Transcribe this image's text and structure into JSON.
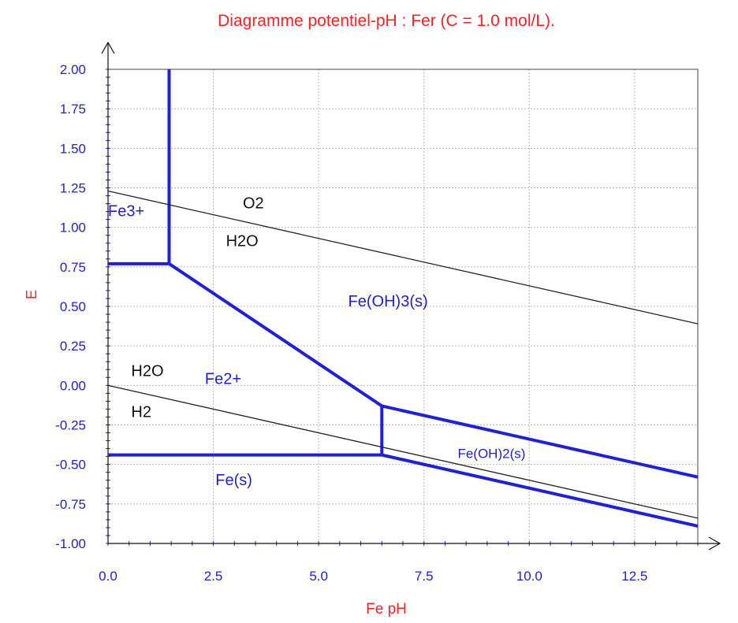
{
  "chart_data": {
    "type": "line",
    "title": "Diagramme potentiel-pH : Fer (C = 1.0 mol/L).",
    "ylabel": "E",
    "xlabel": "Fe pH",
    "xlim": [
      0,
      14
    ],
    "ylim": [
      -1.0,
      2.0
    ],
    "x_ticks": [
      "0.0",
      "2.5",
      "5.0",
      "7.5",
      "10.0",
      "12.5"
    ],
    "x_tick_values": [
      0,
      2.5,
      5,
      7.5,
      10,
      12.5
    ],
    "y_ticks": [
      "-1.00",
      "-0.75",
      "-0.50",
      "-0.25",
      "0.00",
      "0.25",
      "0.50",
      "0.75",
      "1.00",
      "1.25",
      "1.50",
      "1.75",
      "2.00"
    ],
    "y_tick_values": [
      -1.0,
      -0.75,
      -0.5,
      -0.25,
      0.0,
      0.25,
      0.5,
      0.75,
      1.0,
      1.25,
      1.5,
      1.75,
      2.0
    ],
    "grid": true,
    "series": [
      {
        "kind": "boundary",
        "color": "#1f1fe0",
        "points": [
          [
            0,
            0.77
          ],
          [
            1.45,
            0.77
          ]
        ]
      },
      {
        "kind": "boundary",
        "color": "#1f1fe0",
        "points": [
          [
            1.45,
            0.77
          ],
          [
            1.45,
            2.0
          ]
        ]
      },
      {
        "kind": "boundary",
        "color": "#1f1fe0",
        "points": [
          [
            1.45,
            0.77
          ],
          [
            6.5,
            -0.13
          ]
        ]
      },
      {
        "kind": "boundary",
        "color": "#1f1fe0",
        "points": [
          [
            6.5,
            -0.13
          ],
          [
            14,
            -0.58
          ]
        ]
      },
      {
        "kind": "boundary",
        "color": "#1f1fe0",
        "points": [
          [
            6.5,
            -0.13
          ],
          [
            6.5,
            -0.44
          ]
        ]
      },
      {
        "kind": "boundary",
        "color": "#1f1fe0",
        "points": [
          [
            0,
            -0.44
          ],
          [
            6.5,
            -0.44
          ]
        ]
      },
      {
        "kind": "boundary",
        "color": "#1f1fe0",
        "points": [
          [
            6.5,
            -0.44
          ],
          [
            14,
            -0.89
          ]
        ]
      },
      {
        "kind": "water",
        "color": "#222222",
        "points": [
          [
            0,
            1.23
          ],
          [
            14,
            0.39
          ]
        ]
      },
      {
        "kind": "water",
        "color": "#222222",
        "points": [
          [
            0,
            0.0
          ],
          [
            14,
            -0.84
          ]
        ]
      }
    ],
    "annotations": [
      {
        "text": "Fe3+",
        "x": 0.0,
        "y": 1.07,
        "style": "blue"
      },
      {
        "text": "O2",
        "x": 3.2,
        "y": 1.12,
        "style": "black"
      },
      {
        "text": "H2O",
        "x": 2.8,
        "y": 0.88,
        "style": "black"
      },
      {
        "text": "Fe(OH)3(s)",
        "x": 5.7,
        "y": 0.5,
        "style": "blue"
      },
      {
        "text": "H2O",
        "x": 0.55,
        "y": 0.06,
        "style": "black"
      },
      {
        "text": "Fe2+",
        "x": 2.3,
        "y": 0.01,
        "style": "blue"
      },
      {
        "text": "H2",
        "x": 0.55,
        "y": -0.2,
        "style": "black"
      },
      {
        "text": "Fe(OH)2(s)",
        "x": 8.3,
        "y": -0.46,
        "style": "blue-s"
      },
      {
        "text": "Fe(s)",
        "x": 2.55,
        "y": -0.63,
        "style": "blue"
      }
    ]
  }
}
